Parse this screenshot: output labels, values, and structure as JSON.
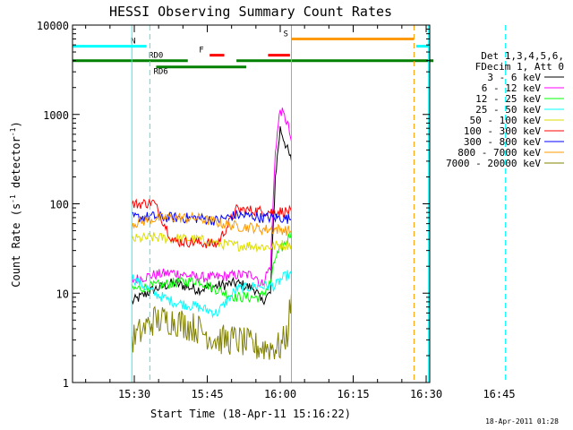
{
  "chart_data": {
    "type": "line",
    "title": "HESSI Observing Summary Count Rates",
    "xlabel": "Start Time (18-Apr-11 15:16:22)",
    "ylabel": "Count Rate (s⁻¹ detector⁻¹)",
    "ylabel_main": "Count Rate (s",
    "ylabel_mid": " detector",
    "ylabel_end": ")",
    "sup": "-1",
    "yscale": "log",
    "ylim": [
      1,
      10000
    ],
    "xlim_minutes_after_1500": [
      16.4,
      80.5
    ],
    "x_ticks": [
      {
        "label": "15:30",
        "min": 30
      },
      {
        "label": "15:45",
        "min": 45
      },
      {
        "label": "16:00",
        "min": 60
      },
      {
        "label": "16:15",
        "min": 75
      },
      {
        "label": "16:30",
        "min": 90
      },
      {
        "label": "16:45",
        "min": 105
      }
    ],
    "y_ticks": [
      {
        "label": "1",
        "v": 1
      },
      {
        "label": "10",
        "v": 10
      },
      {
        "label": "100",
        "v": 100
      },
      {
        "label": "1000",
        "v": 1000
      },
      {
        "label": "10000",
        "v": 10000
      }
    ],
    "legend_header": [
      "Det 1,3,4,5,6,",
      "FDecim 1, Att 0"
    ],
    "legend_position": "right",
    "footer": "18-Apr-2011 01:28",
    "series": [
      {
        "name": "3 - 6 keV",
        "color": "#000000",
        "seg": [
          [
            29.5,
            8
          ],
          [
            34,
            11
          ],
          [
            38,
            13
          ],
          [
            43,
            11
          ],
          [
            47,
            12
          ],
          [
            51,
            13
          ],
          [
            55,
            11
          ],
          [
            56,
            8
          ],
          [
            58,
            10
          ],
          [
            59,
            200
          ],
          [
            60,
            700
          ],
          [
            61.5,
            400
          ],
          [
            62.3,
            300
          ]
        ]
      },
      {
        "name": "6 - 12 keV",
        "color": "#ff00ff",
        "seg": [
          [
            29.5,
            14
          ],
          [
            34,
            16
          ],
          [
            38,
            17
          ],
          [
            43,
            15
          ],
          [
            47,
            15
          ],
          [
            51,
            16
          ],
          [
            55,
            16
          ],
          [
            56,
            12
          ],
          [
            58,
            20
          ],
          [
            59,
            400
          ],
          [
            60,
            1150
          ],
          [
            61.5,
            800
          ],
          [
            62.3,
            500
          ]
        ]
      },
      {
        "name": "12 - 25 keV",
        "color": "#00ff00",
        "seg": [
          [
            29.5,
            11
          ],
          [
            34,
            12
          ],
          [
            38,
            13
          ],
          [
            43,
            14
          ],
          [
            47,
            11
          ],
          [
            51,
            9
          ],
          [
            55,
            9
          ],
          [
            56,
            9
          ],
          [
            58,
            13
          ],
          [
            59,
            25
          ],
          [
            60,
            30
          ],
          [
            61.5,
            40
          ],
          [
            62.3,
            50
          ]
        ]
      },
      {
        "name": "25 - 50 keV",
        "color": "#00ffff",
        "seg": [
          [
            29.5,
            15
          ],
          [
            34,
            10
          ],
          [
            38,
            8
          ],
          [
            43,
            7
          ],
          [
            47,
            6
          ],
          [
            51,
            11
          ],
          [
            55,
            12
          ],
          [
            56,
            12
          ],
          [
            58,
            12
          ],
          [
            59,
            12
          ],
          [
            60,
            14
          ],
          [
            61.5,
            16
          ],
          [
            62.3,
            16
          ]
        ]
      },
      {
        "name": "50 - 100 keV",
        "color": "#dddd00",
        "seg": [
          [
            29.5,
            40
          ],
          [
            34,
            42
          ],
          [
            38,
            41
          ],
          [
            43,
            40
          ],
          [
            47,
            36
          ],
          [
            51,
            34
          ],
          [
            55,
            34
          ],
          [
            56,
            33
          ],
          [
            58,
            33
          ],
          [
            59,
            34
          ],
          [
            60,
            35
          ],
          [
            61.5,
            35
          ],
          [
            62.3,
            35
          ]
        ]
      },
      {
        "name": "100 - 300 keV",
        "color": "#ff0000",
        "seg": [
          [
            29.5,
            98
          ],
          [
            34,
            104
          ],
          [
            38,
            38
          ],
          [
            43,
            37
          ],
          [
            47,
            35
          ],
          [
            51,
            86
          ],
          [
            55,
            84
          ],
          [
            56,
            83
          ],
          [
            58,
            82
          ],
          [
            59,
            82
          ],
          [
            60,
            82
          ],
          [
            61.5,
            82
          ],
          [
            62.3,
            82
          ]
        ]
      },
      {
        "name": "300 - 800 keV",
        "color": "#0000ff",
        "seg": [
          [
            29.5,
            70
          ],
          [
            34,
            72
          ],
          [
            38,
            70
          ],
          [
            43,
            69
          ],
          [
            47,
            65
          ],
          [
            51,
            75
          ],
          [
            55,
            72
          ],
          [
            56,
            70
          ],
          [
            58,
            70
          ],
          [
            59,
            70
          ],
          [
            60,
            70
          ],
          [
            61.5,
            68
          ],
          [
            62.3,
            68
          ]
        ]
      },
      {
        "name": "800 - 7000 keV",
        "color": "#ff9900",
        "seg": [
          [
            29.5,
            60
          ],
          [
            34,
            68
          ],
          [
            38,
            70
          ],
          [
            43,
            69
          ],
          [
            47,
            62
          ],
          [
            51,
            56
          ],
          [
            55,
            54
          ],
          [
            56,
            52
          ],
          [
            58,
            52
          ],
          [
            59,
            52
          ],
          [
            60,
            52
          ],
          [
            61.5,
            50
          ],
          [
            62.3,
            50
          ]
        ]
      },
      {
        "name": "7000 - 20000 keV",
        "color": "#808000",
        "seg": [
          [
            29.5,
            3
          ],
          [
            34,
            5
          ],
          [
            38,
            5
          ],
          [
            43,
            4
          ],
          [
            47,
            3
          ],
          [
            51,
            3
          ],
          [
            55,
            2.5
          ],
          [
            56,
            2.5
          ],
          [
            58,
            2.5
          ],
          [
            59,
            2.5
          ],
          [
            60,
            2.5
          ],
          [
            61.5,
            3.5
          ],
          [
            62.3,
            10
          ]
        ]
      }
    ],
    "flags": [
      {
        "label": "N",
        "color": "#00ffff",
        "v": 5800,
        "spans": [
          [
            16.4,
            32.5
          ],
          [
            90.5,
            108
          ]
        ]
      },
      {
        "label": "S",
        "color": "#ff9900",
        "v": 7000,
        "spans": [
          [
            62.3,
            87.5
          ]
        ]
      },
      {
        "label": "F",
        "color": "#ff0000",
        "v": 4600,
        "spans": [
          [
            45.5,
            48.5
          ],
          [
            57.5,
            62
          ]
        ]
      },
      {
        "label": "RD0",
        "color": "#008000",
        "v": 4000,
        "spans": [
          [
            16.4,
            41
          ],
          [
            51,
            90.5
          ],
          [
            91.5,
            108
          ]
        ]
      },
      {
        "label": "RD6",
        "color": "#008000",
        "v": 3400,
        "spans": [
          [
            34.5,
            53
          ]
        ]
      }
    ],
    "vlines": [
      {
        "min": 29.5,
        "color": "#00ffff",
        "style": "solid"
      },
      {
        "min": 33.2,
        "color": "#00ffff",
        "style": "dashed"
      },
      {
        "min": 62.3,
        "color": "#ff9900",
        "style": "solid"
      },
      {
        "min": 87.5,
        "color": "#ff9900",
        "style": "dashed"
      },
      {
        "min": 90.5,
        "color": "#00ffff",
        "style": "solid"
      },
      {
        "min": 106.3,
        "color": "#00ffff",
        "style": "dashed"
      }
    ]
  }
}
